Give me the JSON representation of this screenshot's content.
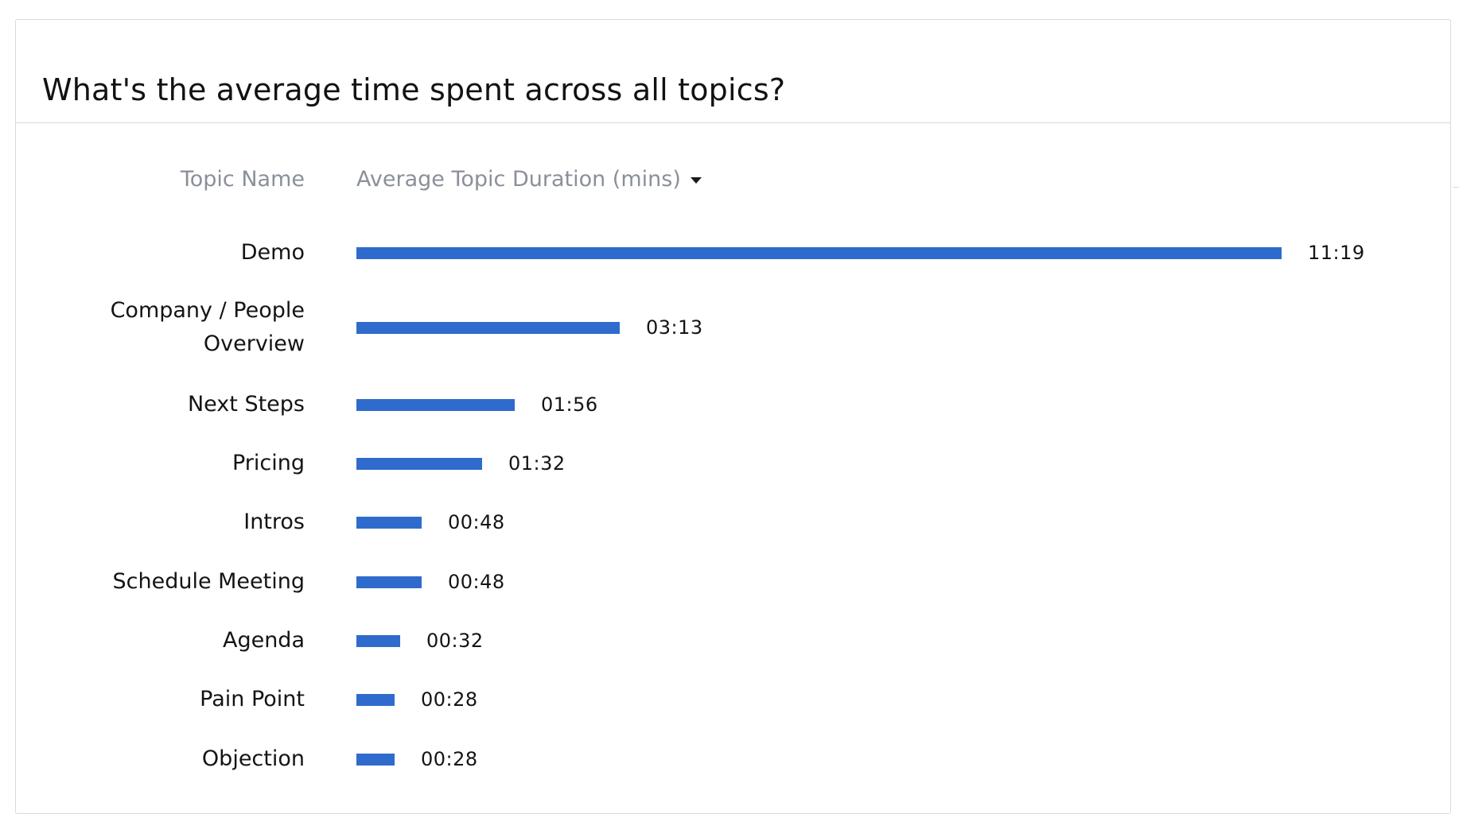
{
  "card": {
    "title": "What's the average time spent across all topics?"
  },
  "table": {
    "topic_header": "Topic Name",
    "duration_header": "Average Topic Duration (mins)",
    "sort_icon": "caret-down-icon"
  },
  "colors": {
    "bar": "#2f6bcc",
    "header_text": "#8a9099",
    "border": "#d6dbe0"
  },
  "chart_data": {
    "type": "bar",
    "orientation": "horizontal",
    "xlabel": "Average Topic Duration (mins)",
    "ylabel": "Topic Name",
    "categories": [
      "Demo",
      "Company / People Overview",
      "Next Steps",
      "Pricing",
      "Intros",
      "Schedule Meeting",
      "Agenda",
      "Pain Point",
      "Objection"
    ],
    "category_lines": [
      [
        "Demo"
      ],
      [
        "Company / People",
        "Overview"
      ],
      [
        "Next Steps"
      ],
      [
        "Pricing"
      ],
      [
        "Intros"
      ],
      [
        "Schedule Meeting"
      ],
      [
        "Agenda"
      ],
      [
        "Pain Point"
      ],
      [
        "Objection"
      ]
    ],
    "values": [
      11.3167,
      3.2167,
      1.9333,
      1.5333,
      0.8,
      0.8,
      0.5333,
      0.4667,
      0.4667
    ],
    "value_labels": [
      "11:19",
      "03:13",
      "01:56",
      "01:32",
      "00:48",
      "00:48",
      "00:32",
      "00:28",
      "00:28"
    ]
  }
}
